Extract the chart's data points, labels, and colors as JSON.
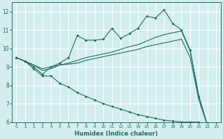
{
  "xlabel": "Humidex (Indice chaleur)",
  "bg_color": "#d4eeed",
  "grid_color": "#ffffff",
  "line_color": "#1e6e64",
  "xlim": [
    -0.5,
    23.5
  ],
  "ylim": [
    6,
    12.5
  ],
  "xticks": [
    0,
    1,
    2,
    3,
    4,
    5,
    6,
    7,
    8,
    9,
    10,
    11,
    12,
    13,
    14,
    15,
    16,
    17,
    18,
    19,
    20,
    21,
    22,
    23
  ],
  "yticks": [
    6,
    7,
    8,
    9,
    10,
    11,
    12
  ],
  "line1_x": [
    0,
    1,
    2,
    3,
    4,
    5,
    6,
    7,
    8,
    9,
    10,
    11,
    12,
    13,
    14,
    15,
    16,
    17,
    18,
    19,
    20,
    21,
    22,
    23
  ],
  "line1_y": [
    9.5,
    9.3,
    9.0,
    8.6,
    9.0,
    9.2,
    9.5,
    10.7,
    10.45,
    10.45,
    10.5,
    11.1,
    10.55,
    10.8,
    11.1,
    11.75,
    11.65,
    12.1,
    11.35,
    11.0,
    9.9,
    7.4,
    5.8,
    5.85
  ],
  "line2_x": [
    0,
    1,
    2,
    3,
    4,
    5,
    6,
    7,
    8,
    9,
    10,
    11,
    12,
    13,
    14,
    15,
    16,
    17,
    18,
    19,
    20,
    21,
    22,
    23
  ],
  "line2_y": [
    9.5,
    9.3,
    9.1,
    8.8,
    8.9,
    9.1,
    9.2,
    9.35,
    9.5,
    9.6,
    9.7,
    9.8,
    9.95,
    10.1,
    10.2,
    10.4,
    10.6,
    10.75,
    10.85,
    10.95,
    9.85,
    7.4,
    5.8,
    5.85
  ],
  "line3_x": [
    0,
    1,
    2,
    3,
    4,
    5,
    6,
    7,
    8,
    9,
    10,
    11,
    12,
    13,
    14,
    15,
    16,
    17,
    18,
    19,
    20,
    21,
    22,
    23
  ],
  "line3_y": [
    9.5,
    9.3,
    9.1,
    8.9,
    9.0,
    9.1,
    9.15,
    9.2,
    9.35,
    9.45,
    9.55,
    9.65,
    9.75,
    9.85,
    9.95,
    10.1,
    10.2,
    10.3,
    10.4,
    10.5,
    9.5,
    7.2,
    5.8,
    5.85
  ],
  "line4_x": [
    0,
    1,
    2,
    3,
    4,
    5,
    6,
    7,
    8,
    9,
    10,
    11,
    12,
    13,
    14,
    15,
    16,
    17,
    18,
    19,
    20,
    21,
    22,
    23
  ],
  "line4_y": [
    9.5,
    9.3,
    8.9,
    8.5,
    8.5,
    8.1,
    7.9,
    7.6,
    7.4,
    7.2,
    7.0,
    6.85,
    6.7,
    6.55,
    6.4,
    6.3,
    6.2,
    6.1,
    6.05,
    6.0,
    6.0,
    6.0,
    5.75,
    5.85
  ]
}
